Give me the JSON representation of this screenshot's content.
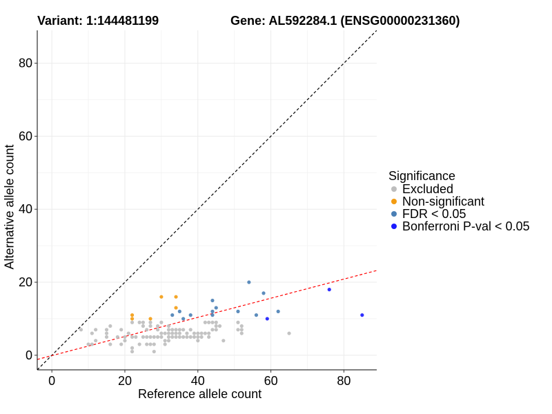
{
  "chart_data": {
    "type": "scatter",
    "title_left": "Variant: 1:144481199",
    "title_right": "Gene: AL592284.1 (ENSG00000231360)",
    "xlabel": "Reference allele count",
    "ylabel": "Alternative allele count",
    "xlim": [
      -4,
      89
    ],
    "ylim": [
      -4,
      89
    ],
    "xticks": [
      "0",
      "20",
      "40",
      "60",
      "80"
    ],
    "yticks": [
      "0",
      "20",
      "40",
      "60",
      "80"
    ],
    "grid": true,
    "legend": {
      "title": "Significance",
      "position": "right",
      "entries": [
        {
          "label": "Excluded",
          "color": "#bdbdbd"
        },
        {
          "label": "Non-significant",
          "color": "#f39c12"
        },
        {
          "label": "FDR < 0.05",
          "color": "#4a7fb5"
        },
        {
          "label": "Bonferroni P-val < 0.05",
          "color": "#1a1aff"
        }
      ]
    },
    "reference_lines": [
      {
        "name": "identity",
        "slope": 1,
        "intercept": 0,
        "color": "#000000",
        "style": "dashed"
      },
      {
        "name": "fit",
        "slope": 0.262,
        "intercept": -0.1,
        "color": "#ff0000",
        "style": "dashed"
      }
    ],
    "series": [
      {
        "name": "Excluded",
        "color": "#bdbdbd",
        "points": [
          [
            8,
            7
          ],
          [
            10,
            3
          ],
          [
            11,
            3
          ],
          [
            11,
            6
          ],
          [
            12,
            4
          ],
          [
            12,
            7
          ],
          [
            15,
            5
          ],
          [
            15,
            6
          ],
          [
            15,
            7
          ],
          [
            16,
            8
          ],
          [
            16,
            3
          ],
          [
            18,
            5
          ],
          [
            19,
            3
          ],
          [
            19,
            7
          ],
          [
            20,
            5
          ],
          [
            20,
            4
          ],
          [
            21,
            6
          ],
          [
            22,
            1
          ],
          [
            22,
            2
          ],
          [
            22,
            5
          ],
          [
            22,
            9
          ],
          [
            23,
            5
          ],
          [
            24,
            9
          ],
          [
            24,
            3
          ],
          [
            25,
            8
          ],
          [
            25,
            5
          ],
          [
            25,
            9
          ],
          [
            26,
            3
          ],
          [
            26,
            5
          ],
          [
            26,
            7
          ],
          [
            27,
            9
          ],
          [
            27,
            8
          ],
          [
            27,
            3
          ],
          [
            27,
            5
          ],
          [
            28,
            1
          ],
          [
            28,
            3
          ],
          [
            28,
            5
          ],
          [
            29,
            5
          ],
          [
            29,
            7
          ],
          [
            29,
            8
          ],
          [
            30,
            5
          ],
          [
            30,
            9
          ],
          [
            30,
            6
          ],
          [
            31,
            3
          ],
          [
            31,
            4
          ],
          [
            31,
            6
          ],
          [
            32,
            4
          ],
          [
            32,
            5
          ],
          [
            32,
            6
          ],
          [
            32,
            7
          ],
          [
            32,
            8
          ],
          [
            33,
            5
          ],
          [
            33,
            6
          ],
          [
            33,
            7
          ],
          [
            34,
            5
          ],
          [
            34,
            6
          ],
          [
            34,
            7
          ],
          [
            35,
            5
          ],
          [
            35,
            6
          ],
          [
            35,
            7
          ],
          [
            36,
            5
          ],
          [
            36,
            7
          ],
          [
            37,
            5
          ],
          [
            37,
            6
          ],
          [
            38,
            5
          ],
          [
            38,
            7
          ],
          [
            39,
            5
          ],
          [
            39,
            6
          ],
          [
            40,
            6
          ],
          [
            40,
            4
          ],
          [
            40,
            5
          ],
          [
            41,
            5
          ],
          [
            41,
            6
          ],
          [
            42,
            6
          ],
          [
            42,
            9
          ],
          [
            43,
            5
          ],
          [
            43,
            9
          ],
          [
            43,
            6
          ],
          [
            44,
            9
          ],
          [
            44,
            7
          ],
          [
            45,
            9
          ],
          [
            45,
            7
          ],
          [
            45,
            8
          ],
          [
            46,
            8
          ],
          [
            47,
            4
          ],
          [
            51,
            9
          ],
          [
            51,
            7
          ],
          [
            52,
            6
          ],
          [
            52,
            8
          ],
          [
            52,
            7
          ],
          [
            65,
            6
          ]
        ]
      },
      {
        "name": "Non-significant",
        "color": "#f39c12",
        "points": [
          [
            22,
            11
          ],
          [
            22,
            10
          ],
          [
            27,
            10
          ],
          [
            30,
            16
          ],
          [
            34,
            16
          ],
          [
            34,
            13
          ]
        ]
      },
      {
        "name": "FDR < 0.05",
        "color": "#4a7fb5",
        "points": [
          [
            33,
            11
          ],
          [
            35,
            12
          ],
          [
            36,
            10
          ],
          [
            38,
            11
          ],
          [
            44,
            15
          ],
          [
            44,
            12
          ],
          [
            44,
            11
          ],
          [
            45,
            13
          ],
          [
            51,
            12
          ],
          [
            54,
            20
          ],
          [
            56,
            11
          ],
          [
            58,
            17
          ],
          [
            62,
            12
          ]
        ]
      },
      {
        "name": "Bonferroni P-val < 0.05",
        "color": "#1a1aff",
        "points": [
          [
            59,
            10
          ],
          [
            76,
            18
          ],
          [
            85,
            11
          ]
        ]
      }
    ]
  }
}
